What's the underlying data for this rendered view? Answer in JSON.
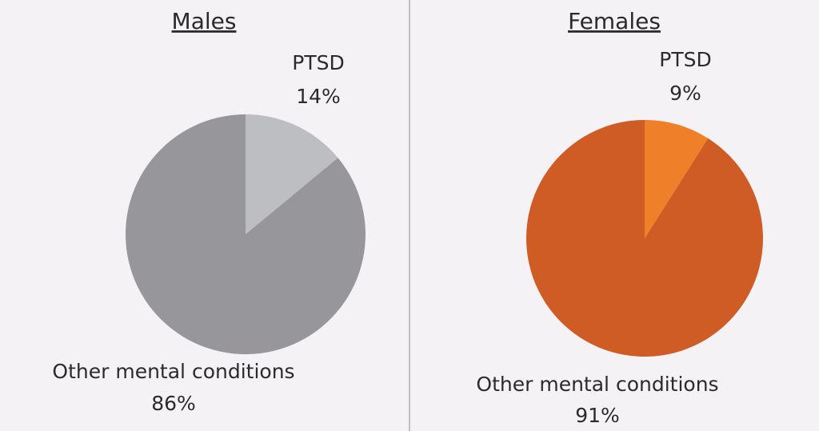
{
  "chart_data": [
    {
      "type": "pie",
      "title": "Males",
      "categories": [
        "PTSD",
        "Other mental conditions"
      ],
      "values": [
        14,
        86
      ],
      "value_labels": [
        "14%",
        "86%"
      ],
      "colors": [
        "#bdbec2",
        "#97969b"
      ]
    },
    {
      "type": "pie",
      "title": "Females",
      "categories": [
        "PTSD",
        "Other mental conditions"
      ],
      "values": [
        9,
        91
      ],
      "value_labels": [
        "9%",
        "91%"
      ],
      "colors": [
        "#f07f2a",
        "#cf5c25"
      ]
    }
  ]
}
